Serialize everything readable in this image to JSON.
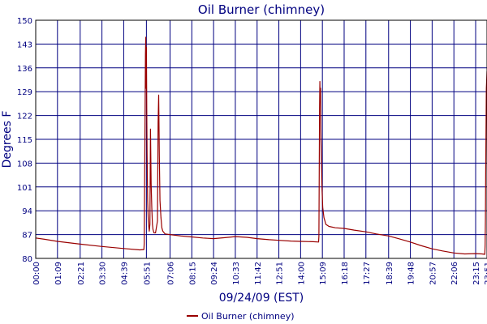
{
  "chart_data": {
    "type": "line",
    "title": "Oil Burner (chimney)",
    "xlabel": "09/24/09 (EST)",
    "ylabel": "Degrees F",
    "ylim": [
      80,
      150
    ],
    "yticks": [
      80,
      87,
      94,
      101,
      108,
      115,
      122,
      129,
      136,
      143,
      150
    ],
    "xlim_minutes": [
      0,
      1431
    ],
    "xticks": [
      {
        "label": "00:00",
        "minute": 0
      },
      {
        "label": "01:09",
        "minute": 69
      },
      {
        "label": "02:21",
        "minute": 141
      },
      {
        "label": "03:30",
        "minute": 210
      },
      {
        "label": "04:39",
        "minute": 279
      },
      {
        "label": "05:51",
        "minute": 351
      },
      {
        "label": "07:06",
        "minute": 426
      },
      {
        "label": "08:15",
        "minute": 495
      },
      {
        "label": "09:24",
        "minute": 564
      },
      {
        "label": "10:33",
        "minute": 633
      },
      {
        "label": "11:42",
        "minute": 702
      },
      {
        "label": "12:51",
        "minute": 771
      },
      {
        "label": "14:00",
        "minute": 840
      },
      {
        "label": "15:09",
        "minute": 909
      },
      {
        "label": "16:18",
        "minute": 978
      },
      {
        "label": "17:27",
        "minute": 1047
      },
      {
        "label": "18:39",
        "minute": 1119
      },
      {
        "label": "19:48",
        "minute": 1188
      },
      {
        "label": "20:57",
        "minute": 1257
      },
      {
        "label": "22:06",
        "minute": 1326
      },
      {
        "label": "23:15",
        "minute": 1395
      },
      {
        "label": "23:51",
        "minute": 1431
      }
    ],
    "grid": true,
    "legend_position": "bottom-center",
    "series": [
      {
        "name": "Oil Burner (chimney)",
        "color": "#990000",
        "points": [
          [
            0,
            86.0
          ],
          [
            30,
            85.6
          ],
          [
            69,
            85.0
          ],
          [
            141,
            84.2
          ],
          [
            210,
            83.5
          ],
          [
            279,
            82.9
          ],
          [
            330,
            82.5
          ],
          [
            343,
            82.6
          ],
          [
            344,
            84.5
          ],
          [
            346,
            110.0
          ],
          [
            348,
            140.0
          ],
          [
            349,
            145.0
          ],
          [
            350,
            130.0
          ],
          [
            351,
            142.0
          ],
          [
            352,
            124.0
          ],
          [
            353,
            111.0
          ],
          [
            355,
            97.0
          ],
          [
            357,
            91.0
          ],
          [
            360,
            88.0
          ],
          [
            362,
            90.0
          ],
          [
            364,
            118.0
          ],
          [
            366,
            102.0
          ],
          [
            368,
            95.0
          ],
          [
            370,
            90.0
          ],
          [
            372,
            88.5
          ],
          [
            375,
            87.5
          ],
          [
            380,
            87.5
          ],
          [
            386,
            91.0
          ],
          [
            388,
            120.0
          ],
          [
            390,
            128.0
          ],
          [
            392,
            110.0
          ],
          [
            394,
            97.0
          ],
          [
            397,
            92.0
          ],
          [
            400,
            89.0
          ],
          [
            403,
            88.0
          ],
          [
            410,
            87.2
          ],
          [
            426,
            87.0
          ],
          [
            460,
            86.6
          ],
          [
            495,
            86.3
          ],
          [
            530,
            86.0
          ],
          [
            564,
            85.8
          ],
          [
            600,
            86.1
          ],
          [
            633,
            86.4
          ],
          [
            670,
            86.2
          ],
          [
            702,
            85.8
          ],
          [
            740,
            85.5
          ],
          [
            771,
            85.3
          ],
          [
            810,
            85.1
          ],
          [
            840,
            85.0
          ],
          [
            880,
            84.9
          ],
          [
            897,
            84.8
          ],
          [
            898,
            86.5
          ],
          [
            899,
            105.0
          ],
          [
            900,
            124.0
          ],
          [
            901,
            132.0
          ],
          [
            902,
            126.0
          ],
          [
            903,
            130.0
          ],
          [
            904,
            118.0
          ],
          [
            906,
            108.0
          ],
          [
            908,
            100.0
          ],
          [
            910,
            95.0
          ],
          [
            914,
            92.0
          ],
          [
            920,
            90.0
          ],
          [
            930,
            89.4
          ],
          [
            950,
            89.0
          ],
          [
            978,
            88.8
          ],
          [
            1010,
            88.3
          ],
          [
            1047,
            87.8
          ],
          [
            1080,
            87.2
          ],
          [
            1119,
            86.6
          ],
          [
            1150,
            85.8
          ],
          [
            1188,
            84.8
          ],
          [
            1220,
            83.8
          ],
          [
            1257,
            82.8
          ],
          [
            1290,
            82.2
          ],
          [
            1326,
            81.6
          ],
          [
            1360,
            81.3
          ],
          [
            1395,
            81.4
          ],
          [
            1415,
            81.3
          ],
          [
            1424,
            81.2
          ],
          [
            1425,
            84.0
          ],
          [
            1426,
            92.0
          ],
          [
            1427,
            105.0
          ],
          [
            1428,
            118.0
          ],
          [
            1429,
            130.0
          ],
          [
            1431,
            135.0
          ]
        ]
      }
    ]
  }
}
